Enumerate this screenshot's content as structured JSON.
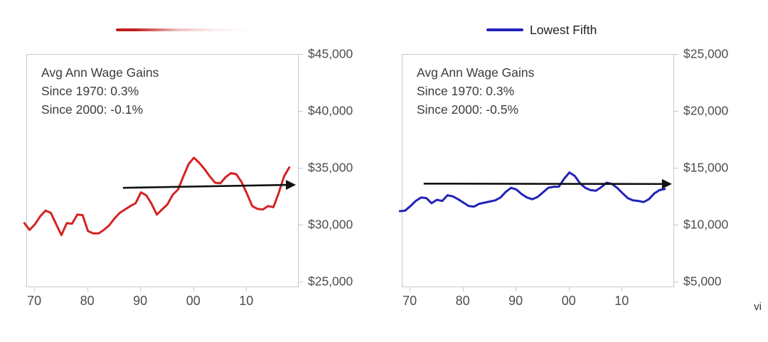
{
  "page": {
    "watermark": "vi",
    "background": "#ffffff"
  },
  "chart_data": [
    {
      "type": "line",
      "title": "",
      "legend": {
        "label": "",
        "line_color": "#c01d1d",
        "faded": true
      },
      "line_color": "#d42323",
      "annotation": [
        "Avg Ann Wage Gains",
        "Since 1970: 0.3%",
        "Since 2000: -0.1%"
      ],
      "x_domain": [
        1968.5,
        2019.5
      ],
      "y_domain": [
        25000,
        45000
      ],
      "y_ticks": [
        {
          "label": "$45,000",
          "value": 45000
        },
        {
          "label": "$40,000",
          "value": 40000
        },
        {
          "label": "$35,000",
          "value": 35000
        },
        {
          "label": "$30,000",
          "value": 30000
        },
        {
          "label": "$25,000",
          "value": 25000
        }
      ],
      "x_ticks": [
        {
          "label": "70",
          "year": 1970
        },
        {
          "label": "80",
          "year": 1980
        },
        {
          "label": "90",
          "year": 1990
        },
        {
          "label": "00",
          "year": 2000
        },
        {
          "label": "10",
          "year": 2010
        }
      ],
      "trend_arrow": {
        "x1_year": 1986.6,
        "y1_value": 33300,
        "x2_year": 2017.5,
        "y2_value": 33560,
        "color": "#111111"
      },
      "series": [
        {
          "name": "",
          "x": [
            1968,
            1969,
            1970,
            1971,
            1972,
            1973,
            1974,
            1975,
            1976,
            1977,
            1978,
            1979,
            1980,
            1981,
            1982,
            1983,
            1984,
            1985,
            1986,
            1987,
            1988,
            1989,
            1990,
            1991,
            1992,
            1993,
            1994,
            1995,
            1996,
            1997,
            1998,
            1999,
            2000,
            2001,
            2002,
            2003,
            2004,
            2005,
            2006,
            2007,
            2008,
            2009,
            2010,
            2011,
            2012,
            2013,
            2014,
            2015,
            2016,
            2017,
            2018
          ],
          "values": [
            30200,
            29600,
            30100,
            30800,
            31300,
            31100,
            30100,
            29150,
            30200,
            30150,
            30950,
            30900,
            29500,
            29300,
            29300,
            29600,
            30000,
            30600,
            31100,
            31400,
            31700,
            31950,
            32900,
            32650,
            31900,
            30950,
            31400,
            31850,
            32700,
            33150,
            34300,
            35400,
            35950,
            35500,
            34950,
            34300,
            33750,
            33700,
            34250,
            34600,
            34500,
            33800,
            32800,
            31700,
            31450,
            31400,
            31700,
            31600,
            32850,
            34300,
            35100
          ]
        }
      ]
    },
    {
      "type": "line",
      "title": "",
      "legend": {
        "label": "Lowest Fifth",
        "line_color": "#2222b8",
        "faded": false
      },
      "line_color": "#2222b8",
      "annotation": [
        "Avg Ann Wage Gains",
        "Since 1970: 0.3%",
        "Since 2000: -0.5%"
      ],
      "x_domain": [
        1968.5,
        2019.5
      ],
      "y_domain": [
        5000,
        25000
      ],
      "y_ticks": [
        {
          "label": "$25,000",
          "value": 25000
        },
        {
          "label": "$20,000",
          "value": 20000
        },
        {
          "label": "$15,000",
          "value": 15000
        },
        {
          "label": "$10,000",
          "value": 10000
        },
        {
          "label": "$5,000",
          "value": 5000
        }
      ],
      "x_ticks": [
        {
          "label": "70",
          "year": 1970
        },
        {
          "label": "80",
          "year": 1980
        },
        {
          "label": "90",
          "year": 1990
        },
        {
          "label": "00",
          "year": 2000
        },
        {
          "label": "10",
          "year": 2010
        }
      ],
      "trend_arrow": {
        "x1_year": 1972.5,
        "y1_value": 13670,
        "x2_year": 2017.6,
        "y2_value": 13640,
        "color": "#111111"
      },
      "series": [
        {
          "name": "Lowest Fifth",
          "x": [
            1968,
            1969,
            1970,
            1971,
            1972,
            1973,
            1974,
            1975,
            1976,
            1977,
            1978,
            1979,
            1980,
            1981,
            1982,
            1983,
            1984,
            1985,
            1986,
            1987,
            1988,
            1989,
            1990,
            1991,
            1992,
            1993,
            1994,
            1995,
            1996,
            1997,
            1998,
            1999,
            2000,
            2001,
            2002,
            2003,
            2004,
            2005,
            2006,
            2007,
            2008,
            2009,
            2010,
            2011,
            2012,
            2013,
            2014,
            2015,
            2016,
            2017,
            2018
          ],
          "values": [
            11250,
            11300,
            11700,
            12150,
            12450,
            12400,
            11950,
            12250,
            12150,
            12650,
            12550,
            12300,
            12000,
            11700,
            11650,
            11900,
            12000,
            12100,
            12200,
            12450,
            12950,
            13300,
            13150,
            12750,
            12450,
            12300,
            12500,
            12900,
            13300,
            13400,
            13400,
            14100,
            14650,
            14350,
            13700,
            13300,
            13100,
            13050,
            13350,
            13750,
            13650,
            13300,
            12850,
            12400,
            12200,
            12150,
            12050,
            12300,
            12800,
            13100,
            13200
          ]
        }
      ]
    }
  ]
}
